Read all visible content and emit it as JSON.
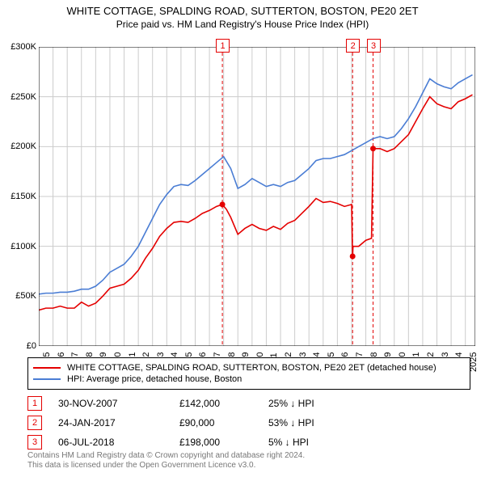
{
  "title_line1": "WHITE COTTAGE, SPALDING ROAD, SUTTERTON, BOSTON, PE20 2ET",
  "title_line2": "Price paid vs. HM Land Registry's House Price Index (HPI)",
  "chart": {
    "type": "line",
    "background_color": "#ffffff",
    "grid_color": "#cccccc",
    "axis_color": "#000000",
    "xlim": [
      1995,
      2025.7
    ],
    "ylim": [
      0,
      300000
    ],
    "ytick_step": 50000,
    "ytick_labels": [
      "£0",
      "£50K",
      "£100K",
      "£150K",
      "£200K",
      "£250K",
      "£300K"
    ],
    "xticks": [
      1995,
      1996,
      1997,
      1998,
      1999,
      2000,
      2001,
      2002,
      2003,
      2004,
      2005,
      2006,
      2007,
      2008,
      2009,
      2010,
      2011,
      2012,
      2013,
      2014,
      2015,
      2016,
      2017,
      2018,
      2019,
      2020,
      2021,
      2022,
      2023,
      2024,
      2025
    ],
    "series": [
      {
        "name": "red",
        "label": "WHITE COTTAGE, SPALDING ROAD, SUTTERTON, BOSTON, PE20 2ET (detached house)",
        "color": "#e40000",
        "line_width": 1.6,
        "points": [
          [
            1995,
            36000
          ],
          [
            1995.5,
            38000
          ],
          [
            1996,
            38000
          ],
          [
            1996.5,
            40000
          ],
          [
            1997,
            38000
          ],
          [
            1997.5,
            38000
          ],
          [
            1998,
            44000
          ],
          [
            1998.5,
            40000
          ],
          [
            1999,
            43000
          ],
          [
            1999.5,
            50000
          ],
          [
            2000,
            58000
          ],
          [
            2000.5,
            60000
          ],
          [
            2001,
            62000
          ],
          [
            2001.5,
            68000
          ],
          [
            2002,
            76000
          ],
          [
            2002.5,
            88000
          ],
          [
            2003,
            98000
          ],
          [
            2003.5,
            110000
          ],
          [
            2004,
            118000
          ],
          [
            2004.5,
            124000
          ],
          [
            2005,
            125000
          ],
          [
            2005.5,
            124000
          ],
          [
            2006,
            128000
          ],
          [
            2006.5,
            133000
          ],
          [
            2007,
            136000
          ],
          [
            2007.5,
            140000
          ],
          [
            2007.91,
            142000
          ],
          [
            2008.2,
            137000
          ],
          [
            2008.5,
            129000
          ],
          [
            2009,
            112000
          ],
          [
            2009.5,
            118000
          ],
          [
            2010,
            122000
          ],
          [
            2010.5,
            118000
          ],
          [
            2011,
            116000
          ],
          [
            2011.5,
            120000
          ],
          [
            2012,
            117000
          ],
          [
            2012.5,
            123000
          ],
          [
            2013,
            126000
          ],
          [
            2013.5,
            133000
          ],
          [
            2014,
            140000
          ],
          [
            2014.5,
            148000
          ],
          [
            2015,
            144000
          ],
          [
            2015.5,
            145000
          ],
          [
            2016,
            143000
          ],
          [
            2016.5,
            140000
          ],
          [
            2017,
            142000
          ],
          [
            2017.07,
            90000
          ],
          [
            2017.1,
            100000
          ],
          [
            2017.5,
            100000
          ],
          [
            2018,
            106000
          ],
          [
            2018.4,
            108000
          ],
          [
            2018.51,
            198000
          ],
          [
            2019,
            198000
          ],
          [
            2019.5,
            195000
          ],
          [
            2020,
            198000
          ],
          [
            2020.5,
            205000
          ],
          [
            2021,
            212000
          ],
          [
            2021.5,
            225000
          ],
          [
            2022,
            238000
          ],
          [
            2022.5,
            250000
          ],
          [
            2023,
            243000
          ],
          [
            2023.5,
            240000
          ],
          [
            2024,
            238000
          ],
          [
            2024.5,
            245000
          ],
          [
            2025,
            248000
          ],
          [
            2025.5,
            252000
          ]
        ]
      },
      {
        "name": "blue",
        "label": "HPI: Average price, detached house, Boston",
        "color": "#4a7dd4",
        "line_width": 1.6,
        "points": [
          [
            1995,
            52000
          ],
          [
            1995.5,
            53000
          ],
          [
            1996,
            53000
          ],
          [
            1996.5,
            54000
          ],
          [
            1997,
            54000
          ],
          [
            1997.5,
            55000
          ],
          [
            1998,
            57000
          ],
          [
            1998.5,
            57000
          ],
          [
            1999,
            60000
          ],
          [
            1999.5,
            66000
          ],
          [
            2000,
            74000
          ],
          [
            2000.5,
            78000
          ],
          [
            2001,
            82000
          ],
          [
            2001.5,
            90000
          ],
          [
            2002,
            100000
          ],
          [
            2002.5,
            114000
          ],
          [
            2003,
            128000
          ],
          [
            2003.5,
            142000
          ],
          [
            2004,
            152000
          ],
          [
            2004.5,
            160000
          ],
          [
            2005,
            162000
          ],
          [
            2005.5,
            161000
          ],
          [
            2006,
            166000
          ],
          [
            2006.5,
            172000
          ],
          [
            2007,
            178000
          ],
          [
            2007.5,
            184000
          ],
          [
            2008,
            190000
          ],
          [
            2008.5,
            178000
          ],
          [
            2009,
            158000
          ],
          [
            2009.5,
            162000
          ],
          [
            2010,
            168000
          ],
          [
            2010.5,
            164000
          ],
          [
            2011,
            160000
          ],
          [
            2011.5,
            162000
          ],
          [
            2012,
            160000
          ],
          [
            2012.5,
            164000
          ],
          [
            2013,
            166000
          ],
          [
            2013.5,
            172000
          ],
          [
            2014,
            178000
          ],
          [
            2014.5,
            186000
          ],
          [
            2015,
            188000
          ],
          [
            2015.5,
            188000
          ],
          [
            2016,
            190000
          ],
          [
            2016.5,
            192000
          ],
          [
            2017,
            196000
          ],
          [
            2017.5,
            200000
          ],
          [
            2018,
            204000
          ],
          [
            2018.5,
            208000
          ],
          [
            2019,
            210000
          ],
          [
            2019.5,
            208000
          ],
          [
            2020,
            210000
          ],
          [
            2020.5,
            218000
          ],
          [
            2021,
            228000
          ],
          [
            2021.5,
            240000
          ],
          [
            2022,
            254000
          ],
          [
            2022.5,
            268000
          ],
          [
            2023,
            263000
          ],
          [
            2023.5,
            260000
          ],
          [
            2024,
            258000
          ],
          [
            2024.5,
            264000
          ],
          [
            2025,
            268000
          ],
          [
            2025.5,
            272000
          ]
        ]
      }
    ],
    "event_lines": [
      {
        "n": "1",
        "x": 2007.91,
        "y_point": 142000,
        "color": "#e40000"
      },
      {
        "n": "2",
        "x": 2017.07,
        "y_point": 90000,
        "color": "#e40000"
      },
      {
        "n": "3",
        "x": 2018.51,
        "y_point": 198000,
        "color": "#e40000"
      }
    ]
  },
  "legend": [
    {
      "color": "#e40000",
      "label": "WHITE COTTAGE, SPALDING ROAD, SUTTERTON, BOSTON, PE20 2ET (detached house)"
    },
    {
      "color": "#4a7dd4",
      "label": "HPI: Average price, detached house, Boston"
    }
  ],
  "events": [
    {
      "n": "1",
      "date": "30-NOV-2007",
      "price": "£142,000",
      "delta": "25% ↓ HPI",
      "badge_color": "#e40000"
    },
    {
      "n": "2",
      "date": "24-JAN-2017",
      "price": "£90,000",
      "delta": "53% ↓ HPI",
      "badge_color": "#e40000"
    },
    {
      "n": "3",
      "date": "06-JUL-2018",
      "price": "£198,000",
      "delta": "5% ↓ HPI",
      "badge_color": "#e40000"
    }
  ],
  "footer_line1": "Contains HM Land Registry data © Crown copyright and database right 2024.",
  "footer_line2": "This data is licensed under the Open Government Licence v3.0."
}
